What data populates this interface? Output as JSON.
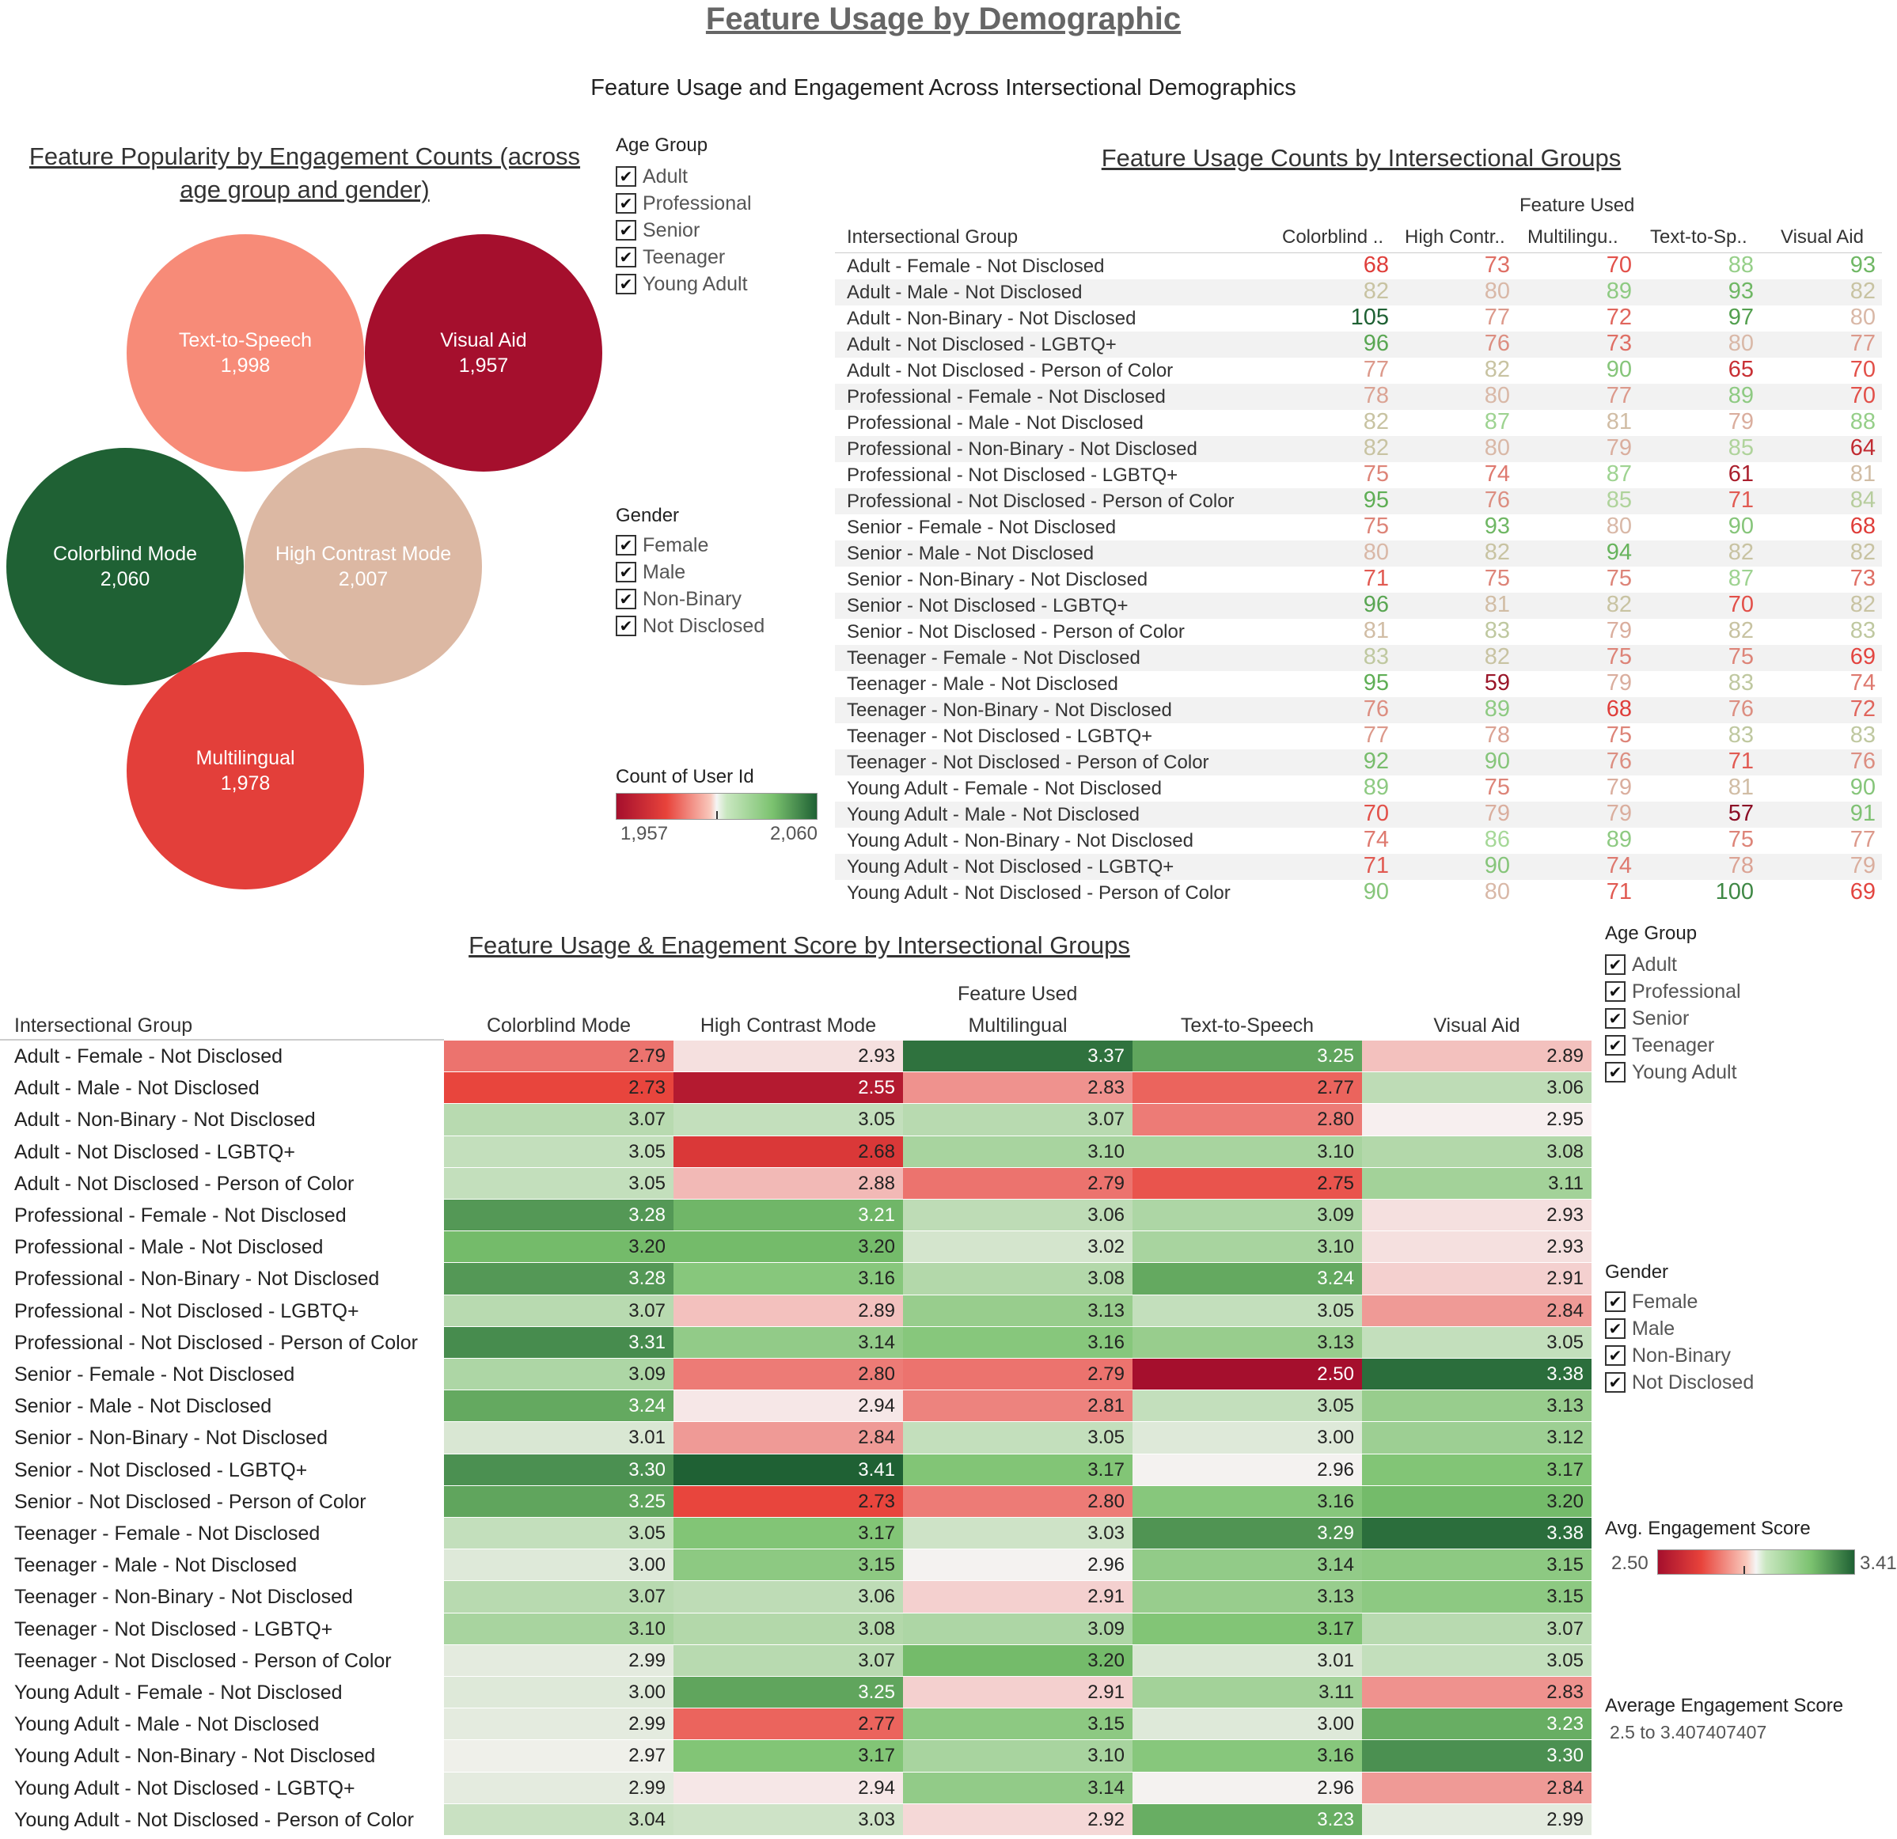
{
  "page": {
    "title": "Feature Usage by Demographic",
    "subtitle": "Feature Usage and Engagement Across Intersectional Demographics"
  },
  "filters_top": {
    "age_group": {
      "title": "Age Group",
      "items": [
        "Adult",
        "Professional",
        "Senior",
        "Teenager",
        "Young Adult"
      ]
    },
    "gender": {
      "title": "Gender",
      "items": [
        "Female",
        "Male",
        "Non-Binary",
        "Not Disclosed"
      ]
    },
    "count_legend": {
      "title": "Count of User Id",
      "min_label": "1,957",
      "max_label": "2,060"
    }
  },
  "filters_bottom": {
    "age_group": {
      "title": "Age Group",
      "items": [
        "Adult",
        "Professional",
        "Senior",
        "Teenager",
        "Young Adult"
      ]
    },
    "gender": {
      "title": "Gender",
      "items": [
        "Female",
        "Male",
        "Non-Binary",
        "Not Disclosed"
      ]
    },
    "score_legend": {
      "title": "Avg. Engagement Score",
      "min_label": "2.50",
      "max_label": "3.41"
    },
    "score_range": {
      "title": "Average Engagement Score",
      "text": "2.5 to 3.407407407"
    }
  },
  "colors": {
    "red_dark": "#a50f2d",
    "red": "#e8433b",
    "salmon": "#f78c79",
    "neutral": "#d7c0aa",
    "white": "#f7f7f7",
    "green_light": "#a6d898",
    "green": "#63a95c",
    "green_dark": "#1f6134"
  },
  "chart_data": [
    {
      "type": "bubble",
      "title": "Feature Popularity by Engagement Counts (across age group and gender)",
      "categories": [
        "Text-to-Speech",
        "Visual Aid",
        "Colorblind Mode",
        "High Contrast Mode",
        "Multilingual"
      ],
      "values": [
        1998,
        1957,
        2060,
        2007,
        1978
      ],
      "value_labels": [
        "1,998",
        "1,957",
        "2,060",
        "2,007",
        "1,978"
      ]
    },
    {
      "type": "table",
      "title": "Feature Usage Counts by Intersectional Groups",
      "column_group_title": "Feature Used",
      "row_header": "Intersectional Group",
      "columns": [
        "Colorblind ..",
        "High Contr..",
        "Multilingu..",
        "Text-to-Sp..",
        "Visual Aid"
      ],
      "rows": [
        {
          "label": "Adult - Female - Not Disclosed",
          "values": [
            68,
            73,
            70,
            88,
            93
          ]
        },
        {
          "label": "Adult - Male - Not Disclosed",
          "values": [
            82,
            80,
            89,
            93,
            82
          ]
        },
        {
          "label": "Adult - Non-Binary - Not Disclosed",
          "values": [
            105,
            77,
            72,
            97,
            80
          ]
        },
        {
          "label": "Adult - Not Disclosed - LGBTQ+",
          "values": [
            96,
            76,
            73,
            80,
            77
          ]
        },
        {
          "label": "Adult - Not Disclosed - Person of Color",
          "values": [
            77,
            82,
            90,
            65,
            70
          ]
        },
        {
          "label": "Professional - Female - Not Disclosed",
          "values": [
            78,
            80,
            77,
            89,
            70
          ]
        },
        {
          "label": "Professional - Male - Not Disclosed",
          "values": [
            82,
            87,
            81,
            79,
            88
          ]
        },
        {
          "label": "Professional - Non-Binary - Not Disclosed",
          "values": [
            82,
            80,
            79,
            85,
            64
          ]
        },
        {
          "label": "Professional - Not Disclosed - LGBTQ+",
          "values": [
            75,
            74,
            87,
            61,
            81
          ]
        },
        {
          "label": "Professional - Not Disclosed - Person of Color",
          "values": [
            95,
            76,
            85,
            71,
            84
          ]
        },
        {
          "label": "Senior - Female - Not Disclosed",
          "values": [
            75,
            93,
            80,
            90,
            68
          ]
        },
        {
          "label": "Senior - Male - Not Disclosed",
          "values": [
            80,
            82,
            94,
            82,
            82
          ]
        },
        {
          "label": "Senior - Non-Binary - Not Disclosed",
          "values": [
            71,
            75,
            75,
            87,
            73
          ]
        },
        {
          "label": "Senior - Not Disclosed - LGBTQ+",
          "values": [
            96,
            81,
            82,
            70,
            82
          ]
        },
        {
          "label": "Senior - Not Disclosed - Person of Color",
          "values": [
            81,
            83,
            79,
            82,
            83
          ]
        },
        {
          "label": "Teenager - Female - Not Disclosed",
          "values": [
            83,
            82,
            75,
            75,
            69
          ]
        },
        {
          "label": "Teenager - Male - Not Disclosed",
          "values": [
            95,
            59,
            79,
            83,
            74
          ]
        },
        {
          "label": "Teenager - Non-Binary - Not Disclosed",
          "values": [
            76,
            89,
            68,
            76,
            72
          ]
        },
        {
          "label": "Teenager - Not Disclosed - LGBTQ+",
          "values": [
            77,
            78,
            75,
            83,
            83
          ]
        },
        {
          "label": "Teenager - Not Disclosed - Person of Color",
          "values": [
            92,
            90,
            76,
            71,
            76
          ]
        },
        {
          "label": "Young Adult - Female - Not Disclosed",
          "values": [
            89,
            75,
            79,
            81,
            90
          ]
        },
        {
          "label": "Young Adult - Male - Not Disclosed",
          "values": [
            70,
            79,
            79,
            57,
            91
          ]
        },
        {
          "label": "Young Adult - Non-Binary - Not Disclosed",
          "values": [
            74,
            86,
            89,
            75,
            77
          ]
        },
        {
          "label": "Young Adult - Not Disclosed - LGBTQ+",
          "values": [
            71,
            90,
            74,
            78,
            79
          ]
        },
        {
          "label": "Young Adult - Not Disclosed - Person of Color",
          "values": [
            90,
            80,
            71,
            100,
            69
          ]
        }
      ]
    },
    {
      "type": "heatmap",
      "title": "Feature Usage & Enagement Score by Intersectional Groups",
      "column_group_title": "Feature Used",
      "row_header": "Intersectional Group",
      "columns": [
        "Colorblind Mode",
        "High Contrast Mode",
        "Multilingual",
        "Text-to-Speech",
        "Visual Aid"
      ],
      "min": 2.5,
      "max": 3.41,
      "rows": [
        {
          "label": "Adult - Female - Not Disclosed",
          "values": [
            2.79,
            2.93,
            3.37,
            3.25,
            2.89
          ]
        },
        {
          "label": "Adult - Male - Not Disclosed",
          "values": [
            2.73,
            2.55,
            2.83,
            2.77,
            3.06
          ]
        },
        {
          "label": "Adult - Non-Binary - Not Disclosed",
          "values": [
            3.07,
            3.05,
            3.07,
            2.8,
            2.95
          ]
        },
        {
          "label": "Adult - Not Disclosed - LGBTQ+",
          "values": [
            3.05,
            2.68,
            3.1,
            3.1,
            3.08
          ]
        },
        {
          "label": "Adult - Not Disclosed - Person of Color",
          "values": [
            3.05,
            2.88,
            2.79,
            2.75,
            3.11
          ]
        },
        {
          "label": "Professional - Female - Not Disclosed",
          "values": [
            3.28,
            3.21,
            3.06,
            3.09,
            2.93
          ]
        },
        {
          "label": "Professional - Male - Not Disclosed",
          "values": [
            3.2,
            3.2,
            3.02,
            3.1,
            2.93
          ]
        },
        {
          "label": "Professional - Non-Binary - Not Disclosed",
          "values": [
            3.28,
            3.16,
            3.08,
            3.24,
            2.91
          ]
        },
        {
          "label": "Professional - Not Disclosed - LGBTQ+",
          "values": [
            3.07,
            2.89,
            3.13,
            3.05,
            2.84
          ]
        },
        {
          "label": "Professional - Not Disclosed - Person of Color",
          "values": [
            3.31,
            3.14,
            3.16,
            3.13,
            3.05
          ]
        },
        {
          "label": "Senior - Female - Not Disclosed",
          "values": [
            3.09,
            2.8,
            2.79,
            2.5,
            3.38
          ]
        },
        {
          "label": "Senior - Male - Not Disclosed",
          "values": [
            3.24,
            2.94,
            2.81,
            3.05,
            3.13
          ]
        },
        {
          "label": "Senior - Non-Binary - Not Disclosed",
          "values": [
            3.01,
            2.84,
            3.05,
            3.0,
            3.12
          ]
        },
        {
          "label": "Senior - Not Disclosed - LGBTQ+",
          "values": [
            3.3,
            3.41,
            3.17,
            2.96,
            3.17
          ]
        },
        {
          "label": "Senior - Not Disclosed - Person of Color",
          "values": [
            3.25,
            2.73,
            2.8,
            3.16,
            3.2
          ]
        },
        {
          "label": "Teenager - Female - Not Disclosed",
          "values": [
            3.05,
            3.17,
            3.03,
            3.29,
            3.38
          ]
        },
        {
          "label": "Teenager - Male - Not Disclosed",
          "values": [
            3.0,
            3.15,
            2.96,
            3.14,
            3.15
          ]
        },
        {
          "label": "Teenager - Non-Binary - Not Disclosed",
          "values": [
            3.07,
            3.06,
            2.91,
            3.13,
            3.15
          ]
        },
        {
          "label": "Teenager - Not Disclosed - LGBTQ+",
          "values": [
            3.1,
            3.08,
            3.09,
            3.17,
            3.07
          ]
        },
        {
          "label": "Teenager - Not Disclosed - Person of Color",
          "values": [
            2.99,
            3.07,
            3.2,
            3.01,
            3.05
          ]
        },
        {
          "label": "Young Adult - Female - Not Disclosed",
          "values": [
            3.0,
            3.25,
            2.91,
            3.11,
            2.83
          ]
        },
        {
          "label": "Young Adult - Male - Not Disclosed",
          "values": [
            2.99,
            2.77,
            3.15,
            3.0,
            3.23
          ]
        },
        {
          "label": "Young Adult - Non-Binary - Not Disclosed",
          "values": [
            2.97,
            3.17,
            3.1,
            3.16,
            3.3
          ]
        },
        {
          "label": "Young Adult - Not Disclosed - LGBTQ+",
          "values": [
            2.99,
            2.94,
            3.14,
            2.96,
            2.84
          ]
        },
        {
          "label": "Young Adult - Not Disclosed - Person of Color",
          "values": [
            3.04,
            3.03,
            2.92,
            3.23,
            2.99
          ]
        }
      ]
    }
  ]
}
